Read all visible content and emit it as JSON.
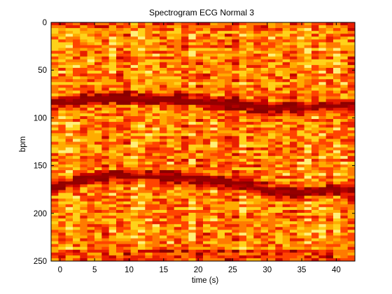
{
  "chart_data": {
    "type": "heatmap",
    "title": "Spectrogram ECG Normal 3",
    "xlabel": "time (s)",
    "ylabel": "bpm",
    "xlim": [
      -1.3,
      42.7
    ],
    "ylim": [
      0,
      250
    ],
    "y_reversed": true,
    "x_ticks": [
      0,
      5,
      10,
      15,
      20,
      25,
      30,
      35,
      40
    ],
    "y_ticks": [
      0,
      50,
      100,
      150,
      200,
      250
    ],
    "grid": false,
    "legend": "none",
    "colormap": [
      "#8b0000",
      "#c40000",
      "#e81e00",
      "#ff4400",
      "#ff7a00",
      "#ffab00",
      "#ffd21a",
      "#fff07a"
    ],
    "series": [
      {
        "kind": "ridge",
        "time_s": [
          -1,
          2,
          5,
          8,
          11,
          14,
          17,
          20,
          23,
          26,
          29,
          32,
          35,
          38,
          42
        ],
        "bpm": [
          84,
          83,
          80,
          79,
          80,
          81,
          82,
          83,
          85,
          87,
          89,
          90,
          89,
          88,
          87
        ]
      },
      {
        "kind": "ridge",
        "time_s": [
          -1,
          2,
          5,
          8,
          11,
          14,
          17,
          20,
          23,
          26,
          29,
          32,
          35,
          38,
          42
        ],
        "bpm": [
          172,
          168,
          162,
          160,
          161,
          162,
          163,
          164,
          166,
          169,
          174,
          178,
          178,
          176,
          175
        ]
      }
    ]
  }
}
